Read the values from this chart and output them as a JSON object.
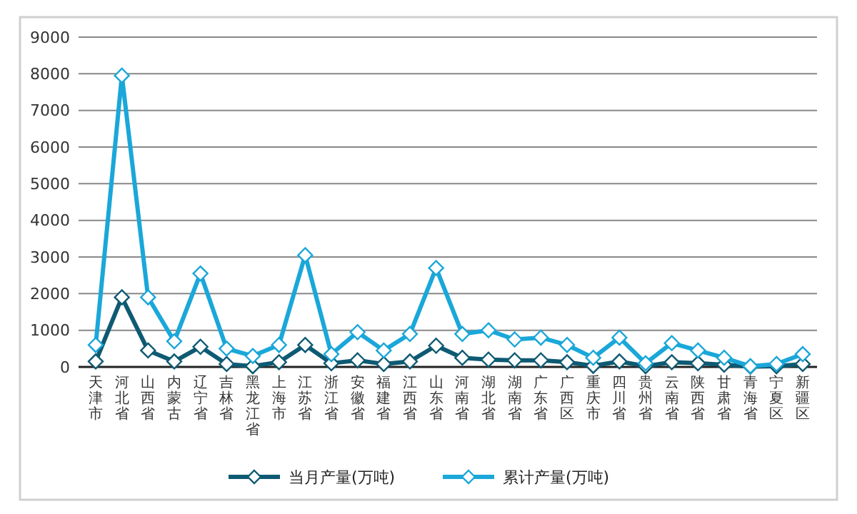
{
  "chart_data": {
    "type": "line",
    "categories": [
      "天津市",
      "河北省",
      "山西省",
      "内蒙古",
      "辽宁省",
      "吉林省",
      "黑龙江省",
      "上海市",
      "江苏省",
      "浙江省",
      "安徽省",
      "福建省",
      "江西省",
      "山东省",
      "河南省",
      "湖北省",
      "湖南省",
      "广东省",
      "广西区",
      "重庆市",
      "四川省",
      "贵州省",
      "云南省",
      "陕西省",
      "甘肃省",
      "青海省",
      "宁夏区",
      "新疆区"
    ],
    "series": [
      {
        "name": "当月产量(万吨)",
        "color": "#0e5a73",
        "values": [
          150,
          1900,
          450,
          150,
          550,
          80,
          20,
          130,
          600,
          100,
          180,
          80,
          150,
          580,
          250,
          200,
          180,
          180,
          130,
          30,
          150,
          20,
          130,
          100,
          60,
          10,
          20,
          80
        ]
      },
      {
        "name": "累计产量(万吨)",
        "color": "#1aa7d9",
        "values": [
          600,
          7950,
          1900,
          700,
          2550,
          500,
          300,
          600,
          3050,
          350,
          950,
          450,
          900,
          2700,
          900,
          1000,
          750,
          800,
          600,
          250,
          800,
          100,
          650,
          450,
          250,
          20,
          80,
          350
        ]
      }
    ],
    "ylim": [
      0,
      9000
    ],
    "yticks": [
      0,
      1000,
      2000,
      3000,
      4000,
      5000,
      6000,
      7000,
      8000,
      9000
    ],
    "grid": "y",
    "legend": "bottom",
    "marker": "diamond",
    "line_style": "solid"
  }
}
